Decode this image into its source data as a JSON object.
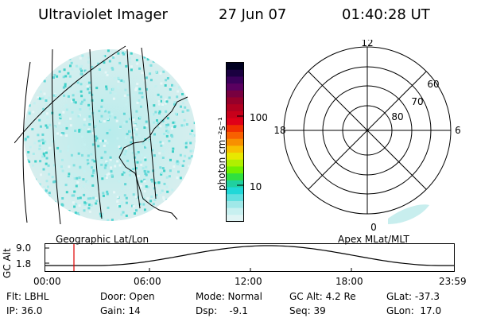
{
  "header": {
    "instrument": "Ultraviolet Imager",
    "date": "27 Jun 07",
    "time": "01:40:28 UT"
  },
  "colorbar": {
    "label": "photon cm⁻²s⁻¹",
    "ticks": [
      "100",
      "10"
    ],
    "colors": [
      "#000020",
      "#1a0040",
      "#3a005a",
      "#5a0060",
      "#780040",
      "#96002a",
      "#b00020",
      "#c8001a",
      "#e00018",
      "#f03000",
      "#f86000",
      "#f89000",
      "#f8c000",
      "#e8e800",
      "#b0f000",
      "#70f000",
      "#30e040",
      "#20d0a0",
      "#20d8d8",
      "#60e0e0",
      "#a0e8e8",
      "#c8f0f0",
      "#e0f4f4"
    ]
  },
  "polar_plot": {
    "mlt_labels": [
      "12",
      "18",
      "6",
      "0"
    ],
    "lat_labels": [
      "60",
      "70",
      "80"
    ]
  },
  "altitude_panel": {
    "y_label": "GC Alt",
    "y_ticks": [
      "9.0",
      "1.8"
    ],
    "left_label": "Geographic Lat/Lon",
    "right_label": "Apex MLat/MLT",
    "x_ticks": [
      "00:00",
      "06:00",
      "12:00",
      "18:00",
      "23:59"
    ],
    "marker_color": "#e00000"
  },
  "info": {
    "filter": "Flt: LBHL",
    "door": "Door: Open",
    "mode": "Mode: Normal",
    "gc_alt": "GC Alt: 4.2 Re",
    "glat": "GLat: -37.3",
    "ip": "IP: 36.0",
    "gain": "Gain: 14",
    "dsp": "Dsp:    -9.1",
    "seq": "Seq: 39",
    "glon": "GLon:  17.0"
  }
}
